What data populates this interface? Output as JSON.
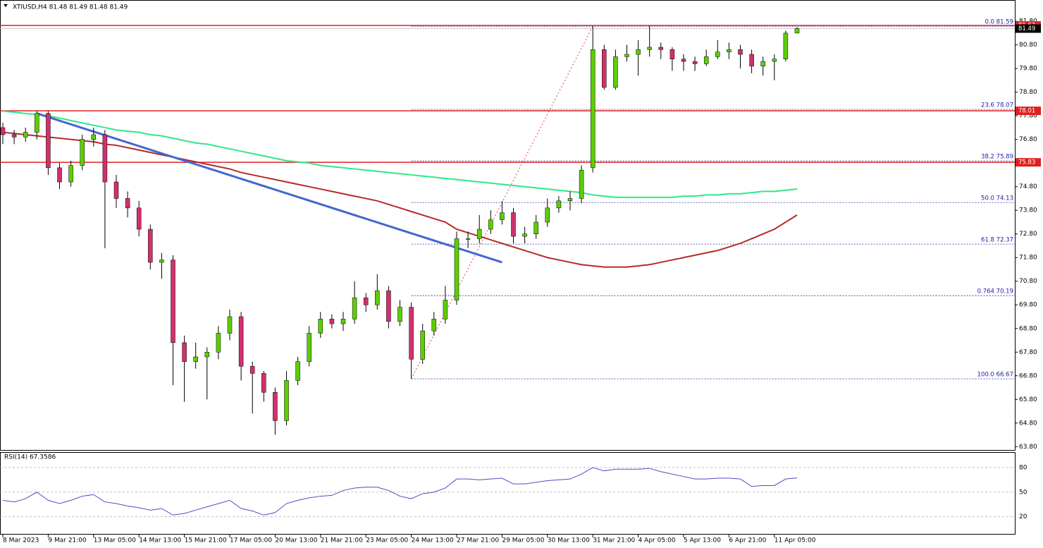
{
  "chart_data": [
    {
      "type": "candlestick",
      "title": "XTIUSD,H4  81.48 81.49 81.48 81.49",
      "categories": [
        "8 Mar 2023",
        null,
        null,
        null,
        "9 Mar 21:00",
        null,
        null,
        null,
        "13 Mar 05:00",
        null,
        null,
        null,
        "14 Mar 13:00",
        null,
        null,
        null,
        "15 Mar 21:00",
        null,
        null,
        null,
        "17 Mar 05:00",
        null,
        null,
        null,
        "20 Mar 13:00",
        null,
        null,
        null,
        "21 Mar 21:00",
        null,
        null,
        null,
        "23 Mar 05:00",
        null,
        null,
        null,
        "24 Mar 13:00",
        null,
        null,
        null,
        "27 Mar 21:00",
        null,
        null,
        null,
        "29 Mar 05:00",
        null,
        null,
        null,
        "30 Mar 13:00",
        null,
        null,
        null,
        "31 Mar 21:00",
        null,
        null,
        null,
        "4 Apr 05:00",
        null,
        null,
        null,
        "5 Apr 13:00",
        null,
        null,
        null,
        "6 Apr 21:00",
        null,
        null,
        null,
        "11 Apr 05:00",
        null,
        null
      ],
      "open": [
        77.3,
        77.0,
        76.9,
        77.1,
        77.9,
        75.6,
        75.0,
        75.7,
        76.8,
        77.0,
        75.0,
        74.3,
        73.9,
        73.0,
        71.6,
        71.7,
        68.2,
        67.4,
        67.6,
        67.8,
        68.6,
        69.3,
        67.2,
        66.9,
        66.1,
        64.9,
        66.6,
        67.4,
        68.6,
        69.2,
        69.0,
        69.2,
        70.1,
        69.8,
        70.4,
        69.1,
        69.7,
        67.5,
        68.7,
        69.2,
        70.0,
        72.6,
        72.6,
        73.0,
        73.4,
        73.7,
        72.7,
        72.8,
        73.3,
        73.9,
        74.2,
        74.3,
        75.6,
        80.6,
        79.0,
        80.3,
        80.4,
        80.6,
        80.7,
        80.6,
        80.2,
        80.1,
        80.0,
        80.3,
        80.5,
        80.6,
        80.4,
        79.9,
        80.1,
        80.2,
        81.3
      ],
      "high": [
        77.5,
        77.2,
        77.3,
        78.0,
        78.0,
        75.8,
        75.9,
        77.0,
        77.3,
        77.2,
        75.3,
        74.6,
        74.2,
        73.2,
        72.0,
        71.9,
        68.5,
        68.2,
        68.0,
        68.9,
        69.6,
        69.5,
        67.4,
        67.0,
        66.3,
        67.0,
        67.6,
        68.9,
        69.5,
        69.4,
        69.5,
        70.8,
        70.3,
        71.1,
        70.6,
        70.0,
        69.9,
        69.0,
        69.5,
        70.6,
        72.9,
        72.9,
        73.6,
        73.8,
        74.2,
        73.9,
        73.1,
        73.6,
        74.3,
        74.4,
        74.6,
        75.7,
        81.59,
        80.8,
        80.6,
        80.8,
        81.0,
        81.6,
        80.9,
        80.7,
        80.4,
        80.3,
        80.6,
        81.0,
        80.9,
        80.8,
        80.6,
        80.3,
        80.4,
        81.4,
        81.55
      ],
      "low": [
        76.6,
        76.6,
        76.7,
        76.8,
        75.3,
        74.7,
        74.8,
        75.5,
        76.5,
        72.2,
        73.9,
        73.5,
        72.7,
        71.3,
        70.9,
        66.4,
        65.7,
        67.1,
        65.8,
        67.5,
        68.3,
        66.6,
        65.2,
        65.7,
        64.3,
        64.7,
        66.4,
        67.2,
        68.4,
        68.8,
        68.7,
        69.0,
        69.5,
        69.6,
        68.8,
        68.9,
        66.67,
        67.3,
        68.5,
        69.0,
        69.8,
        72.2,
        72.4,
        72.8,
        73.2,
        72.4,
        72.4,
        72.6,
        73.1,
        73.7,
        73.8,
        74.1,
        75.4,
        78.9,
        78.9,
        80.1,
        79.5,
        80.3,
        80.2,
        79.7,
        79.7,
        79.7,
        79.9,
        80.2,
        80.2,
        79.8,
        79.6,
        79.5,
        79.3,
        80.1,
        81.3
      ],
      "close": [
        77.0,
        76.9,
        77.1,
        77.9,
        75.6,
        75.0,
        75.7,
        76.8,
        77.0,
        75.0,
        74.3,
        73.9,
        73.0,
        71.6,
        71.7,
        68.2,
        67.4,
        67.6,
        67.8,
        68.6,
        69.3,
        67.2,
        66.9,
        66.1,
        64.9,
        66.6,
        67.4,
        68.6,
        69.2,
        69.0,
        69.2,
        70.1,
        69.8,
        70.4,
        69.1,
        69.7,
        67.5,
        68.7,
        69.2,
        70.0,
        72.6,
        72.6,
        73.0,
        73.4,
        73.7,
        72.7,
        72.8,
        73.3,
        73.9,
        74.2,
        74.3,
        75.5,
        80.6,
        79.0,
        80.3,
        80.4,
        80.6,
        80.7,
        80.6,
        80.2,
        80.1,
        80.0,
        80.3,
        80.5,
        80.6,
        80.4,
        79.9,
        80.1,
        80.2,
        81.3,
        81.49
      ],
      "color_up": "#5ccf00",
      "color_down": "#d1306e",
      "series": [
        {
          "color": "#2ee88a",
          "values": [
            78.0,
            77.95,
            77.9,
            77.85,
            77.8,
            77.7,
            77.6,
            77.5,
            77.4,
            77.3,
            77.2,
            77.15,
            77.1,
            77.0,
            76.95,
            76.85,
            76.75,
            76.65,
            76.6,
            76.5,
            76.4,
            76.3,
            76.2,
            76.1,
            76.0,
            75.9,
            75.85,
            75.8,
            75.7,
            75.65,
            75.6,
            75.55,
            75.5,
            75.45,
            75.4,
            75.35,
            75.3,
            75.25,
            75.2,
            75.15,
            75.1,
            75.05,
            75.0,
            74.95,
            74.9,
            74.85,
            74.8,
            74.75,
            74.7,
            74.65,
            74.6,
            74.55,
            74.45,
            74.4,
            74.35,
            74.35,
            74.35,
            74.35,
            74.35,
            74.35,
            74.4,
            74.4,
            74.45,
            74.45,
            74.5,
            74.5,
            74.55,
            74.6,
            74.6,
            74.65,
            74.7
          ]
        },
        {
          "color": "#b52a2a",
          "values": [
            77.1,
            77.05,
            77.0,
            76.95,
            76.9,
            76.85,
            76.8,
            76.75,
            76.7,
            76.6,
            76.55,
            76.45,
            76.35,
            76.25,
            76.15,
            76.05,
            75.95,
            75.85,
            75.75,
            75.65,
            75.55,
            75.4,
            75.3,
            75.2,
            75.1,
            75.0,
            74.9,
            74.8,
            74.7,
            74.6,
            74.5,
            74.4,
            74.3,
            74.2,
            74.05,
            73.9,
            73.75,
            73.6,
            73.45,
            73.3,
            73.0,
            72.85,
            72.7,
            72.55,
            72.4,
            72.25,
            72.1,
            71.95,
            71.8,
            71.7,
            71.6,
            71.5,
            71.45,
            71.4,
            71.4,
            71.4,
            71.45,
            71.5,
            71.6,
            71.7,
            71.8,
            71.9,
            72.0,
            72.1,
            72.25,
            72.4,
            72.6,
            72.8,
            73.0,
            73.3,
            73.6
          ]
        }
      ],
      "levels": [
        81.62,
        78.01,
        75.83
      ],
      "level_color": "#e02020",
      "last_price": 81.49,
      "trendline": {
        "color": "#4466d0",
        "start": [
          3,
          77.9
        ],
        "end": [
          44,
          71.6
        ]
      },
      "fib": {
        "start": 36,
        "end": 52,
        "color": "#2b2b9a",
        "levels": [
          {
            "value": 81.59,
            "label": "0.0 81.59"
          },
          {
            "value": 78.07,
            "label": "23.6 78.07"
          },
          {
            "value": 75.89,
            "label": "38.2 75.89"
          },
          {
            "value": 74.13,
            "label": "50.0 74.13"
          },
          {
            "value": 72.37,
            "label": "61.8 72.37"
          },
          {
            "value": 70.19,
            "label": "0.764 70.19"
          },
          {
            "value": 66.67,
            "label": "100.0 66.67"
          }
        ]
      },
      "ylim": [
        63.6,
        82.55
      ],
      "yticks": [
        {
          "value": 81.8,
          "label": "81.80"
        },
        {
          "value": 80.8,
          "label": "80.80"
        },
        {
          "value": 79.8,
          "label": "79.80"
        },
        {
          "value": 78.8,
          "label": "78.80"
        },
        {
          "value": 77.8,
          "label": "77.80"
        },
        {
          "value": 76.8,
          "label": "76.80"
        },
        {
          "value": 75.8,
          "label": "75.80"
        },
        {
          "value": 74.8,
          "label": "74.80"
        },
        {
          "value": 73.8,
          "label": "73.80"
        },
        {
          "value": 72.8,
          "label": "72.80"
        },
        {
          "value": 71.8,
          "label": "71.80"
        },
        {
          "value": 70.8,
          "label": "70.80"
        },
        {
          "value": 69.8,
          "label": "69.80"
        },
        {
          "value": 68.8,
          "label": "68.80"
        },
        {
          "value": 67.8,
          "label": "67.80"
        },
        {
          "value": 66.8,
          "label": "66.80"
        },
        {
          "value": 65.8,
          "label": "65.80"
        },
        {
          "value": 64.8,
          "label": "64.80"
        },
        {
          "value": 63.8,
          "label": "63.80"
        }
      ]
    },
    {
      "type": "line",
      "title": "RSI(14) 67.3586",
      "color": "#6a3fc0",
      "values": [
        40,
        38,
        42,
        50,
        40,
        36,
        40,
        45,
        47,
        38,
        36,
        33,
        31,
        28,
        30,
        22,
        24,
        28,
        32,
        36,
        40,
        30,
        27,
        22,
        25,
        36,
        40,
        43,
        45,
        46,
        52,
        55,
        56,
        56,
        52,
        45,
        42,
        48,
        50,
        55,
        66,
        66,
        65,
        66,
        67,
        60,
        60,
        62,
        64,
        65,
        66,
        72,
        80,
        76,
        78,
        78,
        78,
        79,
        75,
        72,
        69,
        66,
        66,
        67,
        67,
        66,
        57,
        58,
        58,
        66,
        67.36
      ],
      "ylim": [
        -1,
        98
      ],
      "yticks": [
        20,
        50,
        80
      ]
    }
  ]
}
